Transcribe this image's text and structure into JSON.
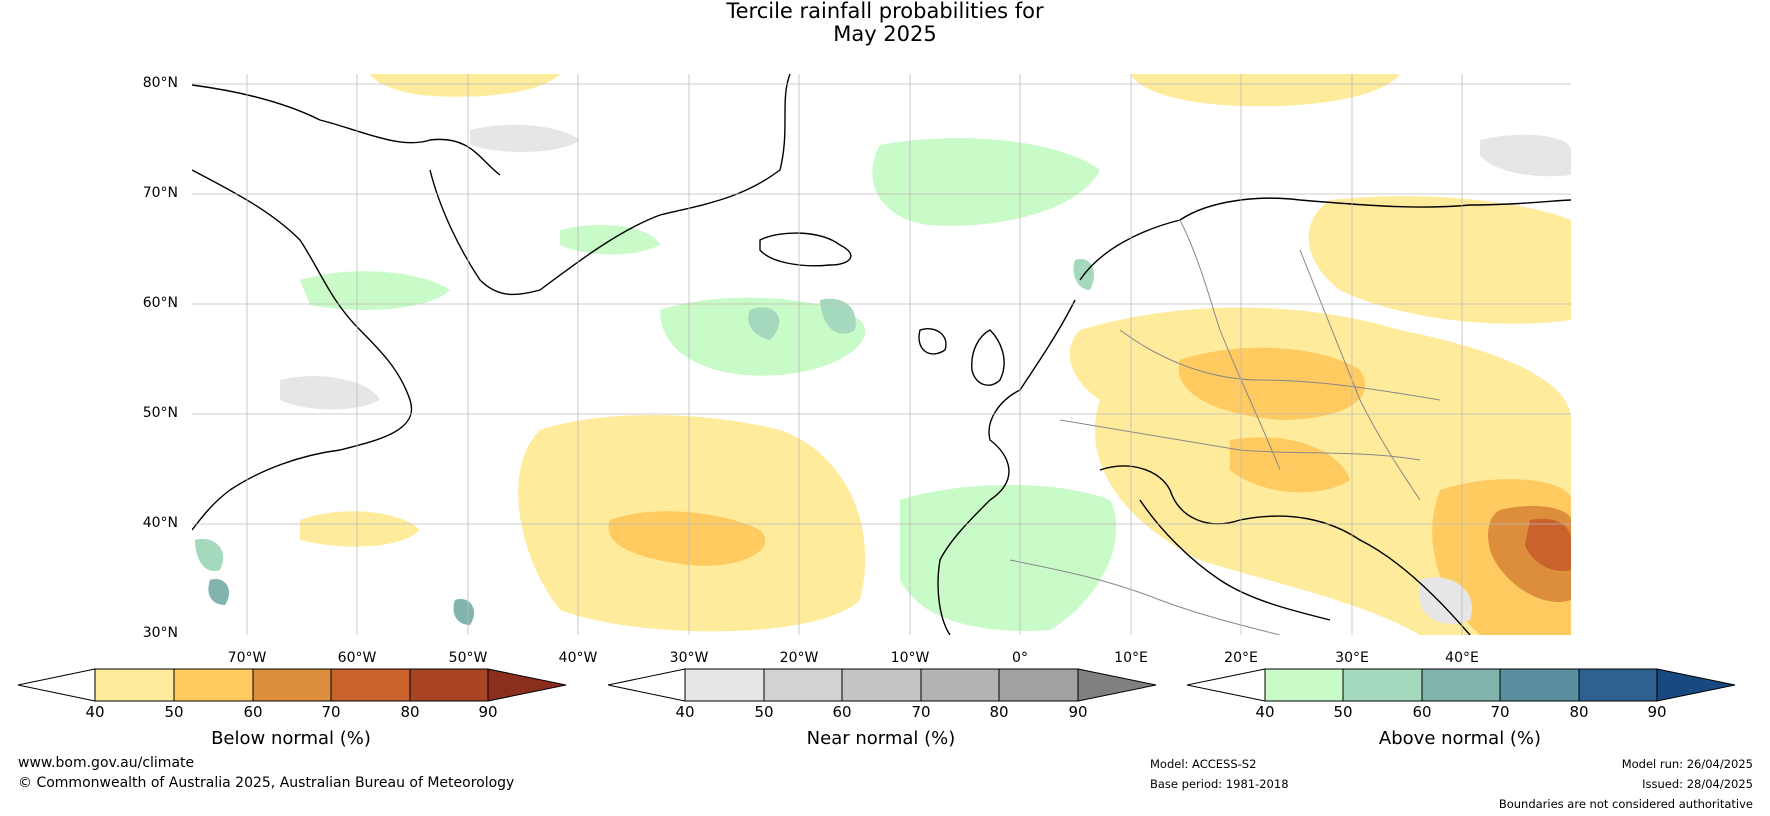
{
  "title": {
    "line1": "Tercile rainfall probabilities for",
    "line2": "May 2025"
  },
  "map": {
    "lat_labels": [
      "80°N",
      "70°N",
      "60°N",
      "50°N",
      "40°N",
      "30°N"
    ],
    "lon_labels": [
      "70°W",
      "60°W",
      "50°W",
      "40°W",
      "30°W",
      "20°W",
      "10°W",
      "0°",
      "10°E",
      "20°E",
      "30°E",
      "40°E"
    ],
    "background": "#ffffff"
  },
  "colorbars": [
    {
      "label": "Below normal (%)",
      "ticks": [
        "40",
        "50",
        "60",
        "70",
        "80",
        "90"
      ],
      "colors": [
        "#ffffff",
        "#ffeb9c",
        "#ffcb60",
        "#dc8e3c",
        "#c9622c",
        "#a94425",
        "#8b2e1e"
      ]
    },
    {
      "label": "Near normal (%)",
      "ticks": [
        "40",
        "50",
        "60",
        "70",
        "80",
        "90"
      ],
      "colors": [
        "#ffffff",
        "#e6e6e6",
        "#d2d2d2",
        "#c4c4c4",
        "#b4b4b4",
        "#a2a2a2",
        "#808080"
      ]
    },
    {
      "label": "Above normal (%)",
      "ticks": [
        "40",
        "50",
        "60",
        "70",
        "80",
        "90"
      ],
      "colors": [
        "#ffffff",
        "#c8fbc8",
        "#a4d9bd",
        "#82b4ae",
        "#5a8fa0",
        "#2e6190",
        "#174a80"
      ]
    }
  ],
  "footer": {
    "website": "www.bom.gov.au/climate",
    "copyright": "© Commonwealth of Australia 2025, Australian Bureau of Meteorology",
    "model": "Model: ACCESS-S2",
    "base_period": "Base period: 1981-2018",
    "model_run": "Model run: 26/04/2025",
    "issued": "Issued: 28/04/2025",
    "disclaimer": "Boundaries are not considered authoritative"
  }
}
